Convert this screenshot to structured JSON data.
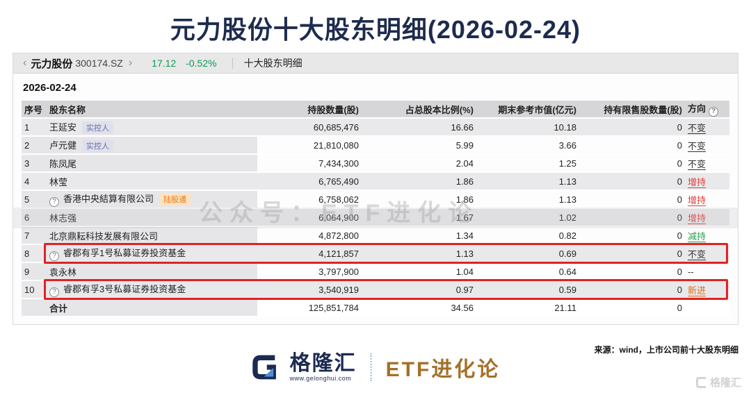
{
  "page": {
    "title": "元力股份十大股东明细(2026-02-24)"
  },
  "toolbar": {
    "back_icon": "chevron-left",
    "stock_name": "元力股份",
    "stock_code": "300174.SZ",
    "forward_icon": "chevron-right",
    "price": "17.12",
    "change": "-0.52%",
    "tab": "十大股东明细"
  },
  "panel": {
    "date": "2026-02-24"
  },
  "table": {
    "headers": [
      "序号",
      "股东名称",
      "持股数量(股)",
      "占总股本比例(%)",
      "期末参考市值(亿元)",
      "持有限售股数量(股)",
      "方向"
    ],
    "header_help_icon": "question-circle",
    "rows": [
      {
        "rank": "1",
        "icon": false,
        "name": "王延安",
        "badge": "实控人",
        "badge_type": "blue",
        "shares": "60,685,476",
        "pct": "16.66",
        "mktval": "10.18",
        "restricted": "0",
        "direction": "不变",
        "direction_type": "neutral",
        "highlight": false,
        "shaded": true
      },
      {
        "rank": "2",
        "icon": false,
        "name": "卢元健",
        "badge": "实控人",
        "badge_type": "blue",
        "shares": "21,810,080",
        "pct": "5.99",
        "mktval": "3.66",
        "restricted": "0",
        "direction": "不变",
        "direction_type": "neutral",
        "highlight": false,
        "shaded": false
      },
      {
        "rank": "3",
        "icon": false,
        "name": "陈凤尾",
        "badge": null,
        "badge_type": null,
        "shares": "7,434,300",
        "pct": "2.04",
        "mktval": "1.25",
        "restricted": "0",
        "direction": "不变",
        "direction_type": "neutral",
        "highlight": false,
        "shaded": false
      },
      {
        "rank": "4",
        "icon": false,
        "name": "林莹",
        "badge": null,
        "badge_type": null,
        "shares": "6,765,490",
        "pct": "1.86",
        "mktval": "1.13",
        "restricted": "0",
        "direction": "增持",
        "direction_type": "red",
        "highlight": false,
        "shaded": true
      },
      {
        "rank": "5",
        "icon": true,
        "name": "香港中央結算有限公司",
        "badge": "陆股通",
        "badge_type": "orange",
        "shares": "6,758,062",
        "pct": "1.86",
        "mktval": "1.13",
        "restricted": "0",
        "direction": "增持",
        "direction_type": "red",
        "highlight": false,
        "shaded": false
      },
      {
        "rank": "6",
        "icon": false,
        "name": "林志强",
        "badge": null,
        "badge_type": null,
        "shares": "6,064,900",
        "pct": "1.67",
        "mktval": "1.02",
        "restricted": "0",
        "direction": "增持",
        "direction_type": "red",
        "highlight": false,
        "shaded": true
      },
      {
        "rank": "7",
        "icon": false,
        "name": "北京鼎耘科技发展有限公司",
        "badge": null,
        "badge_type": null,
        "shares": "4,872,800",
        "pct": "1.34",
        "mktval": "0.82",
        "restricted": "0",
        "direction": "减持",
        "direction_type": "green",
        "highlight": false,
        "shaded": false
      },
      {
        "rank": "8",
        "icon": true,
        "name": "睿郡有孚1号私募证券投资基金",
        "badge": null,
        "badge_type": null,
        "shares": "4,121,857",
        "pct": "1.13",
        "mktval": "0.69",
        "restricted": "0",
        "direction": "不变",
        "direction_type": "neutral",
        "highlight": true,
        "shaded": true
      },
      {
        "rank": "9",
        "icon": false,
        "name": "袁永林",
        "badge": null,
        "badge_type": null,
        "shares": "3,797,900",
        "pct": "1.04",
        "mktval": "0.64",
        "restricted": "0",
        "direction": "--",
        "direction_type": "none",
        "highlight": false,
        "shaded": false
      },
      {
        "rank": "10",
        "icon": true,
        "name": "睿郡有孚3号私募证券投资基金",
        "badge": null,
        "badge_type": null,
        "shares": "3,540,919",
        "pct": "0.97",
        "mktval": "0.59",
        "restricted": "0",
        "direction": "新进",
        "direction_type": "orange",
        "highlight": true,
        "shaded": true
      }
    ],
    "total": {
      "label": "合计",
      "shares": "125,851,784",
      "pct": "34.56",
      "mktval": "21.11",
      "restricted": "0"
    }
  },
  "watermark": "公众号：ETF进化论",
  "footer": {
    "logo_name": "格隆汇",
    "logo_url": "www.gelonghui.com",
    "brand": "ETF进化论",
    "source": "来源：wind，上市公司前十大股东明细",
    "corner_watermark": "格隆汇"
  },
  "colors": {
    "title_navy": "#1d2b4d",
    "price_green": "#0a9a50",
    "increase_red": "#e03a3a",
    "decrease_green": "#2e9e52",
    "new_entry_orange": "#e8680f",
    "highlight_box_red": "#e02222",
    "brand_gold": "#a3712a"
  }
}
